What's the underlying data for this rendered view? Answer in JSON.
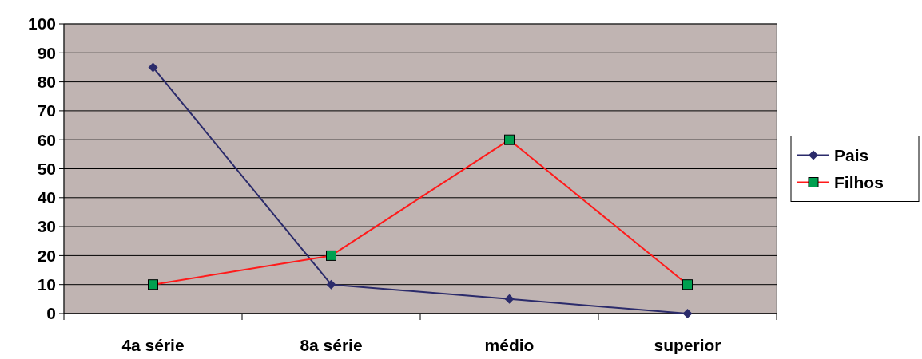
{
  "chart_data": {
    "type": "line",
    "categories": [
      "4a série",
      "8a série",
      "médio",
      "superior"
    ],
    "series": [
      {
        "name": "Pais",
        "color": "#2b2b6b",
        "marker": "diamond",
        "values": [
          85,
          10,
          5,
          0
        ]
      },
      {
        "name": "Filhos",
        "color": "#ff1a1a",
        "marker": "square",
        "colors": [
          "#00a050",
          "#00a050",
          "#00a050",
          "#00a050"
        ],
        "values": [
          10,
          20,
          60,
          10
        ]
      }
    ],
    "ylim": [
      0,
      100
    ],
    "yticks": [
      0,
      10,
      20,
      30,
      40,
      50,
      60,
      70,
      80,
      90,
      100
    ],
    "grid": "y",
    "legend": "right"
  }
}
